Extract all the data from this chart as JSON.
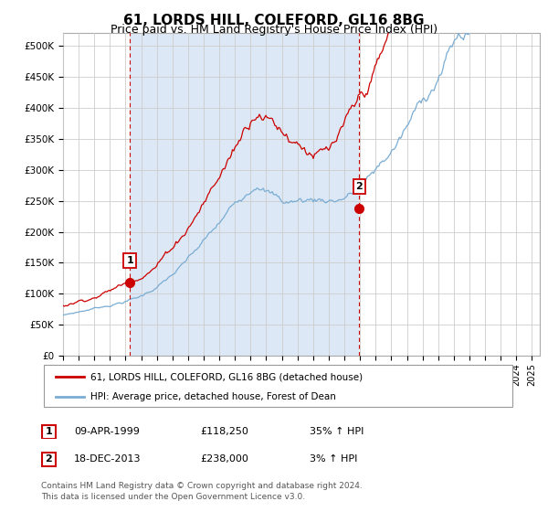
{
  "title": "61, LORDS HILL, COLEFORD, GL16 8BG",
  "subtitle": "Price paid vs. HM Land Registry's House Price Index (HPI)",
  "xlim": [
    1995.0,
    2025.5
  ],
  "ylim": [
    0,
    520000
  ],
  "yticks": [
    0,
    50000,
    100000,
    150000,
    200000,
    250000,
    300000,
    350000,
    400000,
    450000,
    500000
  ],
  "ytick_labels": [
    "£0",
    "£50K",
    "£100K",
    "£150K",
    "£200K",
    "£250K",
    "£300K",
    "£350K",
    "£400K",
    "£450K",
    "£500K"
  ],
  "xtick_years": [
    1995,
    1996,
    1997,
    1998,
    1999,
    2000,
    2001,
    2002,
    2003,
    2004,
    2005,
    2006,
    2007,
    2008,
    2009,
    2010,
    2011,
    2012,
    2013,
    2014,
    2015,
    2016,
    2017,
    2018,
    2019,
    2020,
    2021,
    2022,
    2023,
    2024,
    2025
  ],
  "sale1_x": 1999.27,
  "sale1_y": 118250,
  "sale1_label": "1",
  "sale2_x": 2013.96,
  "sale2_y": 238000,
  "sale2_label": "2",
  "vline1_x": 1999.27,
  "vline2_x": 2013.96,
  "red_color": "#cc0000",
  "blue_color": "#7aadd4",
  "shade_color": "#dce8f5",
  "background_color": "#ffffff",
  "grid_color": "#cccccc",
  "legend_label_red": "61, LORDS HILL, COLEFORD, GL16 8BG (detached house)",
  "legend_label_blue": "HPI: Average price, detached house, Forest of Dean",
  "table_rows": [
    {
      "num": "1",
      "date": "09-APR-1999",
      "price": "£118,250",
      "hpi": "35% ↑ HPI"
    },
    {
      "num": "2",
      "date": "18-DEC-2013",
      "price": "£238,000",
      "hpi": "3% ↑ HPI"
    }
  ],
  "footnote": "Contains HM Land Registry data © Crown copyright and database right 2024.\nThis data is licensed under the Open Government Licence v3.0.",
  "title_fontsize": 11,
  "subtitle_fontsize": 9
}
